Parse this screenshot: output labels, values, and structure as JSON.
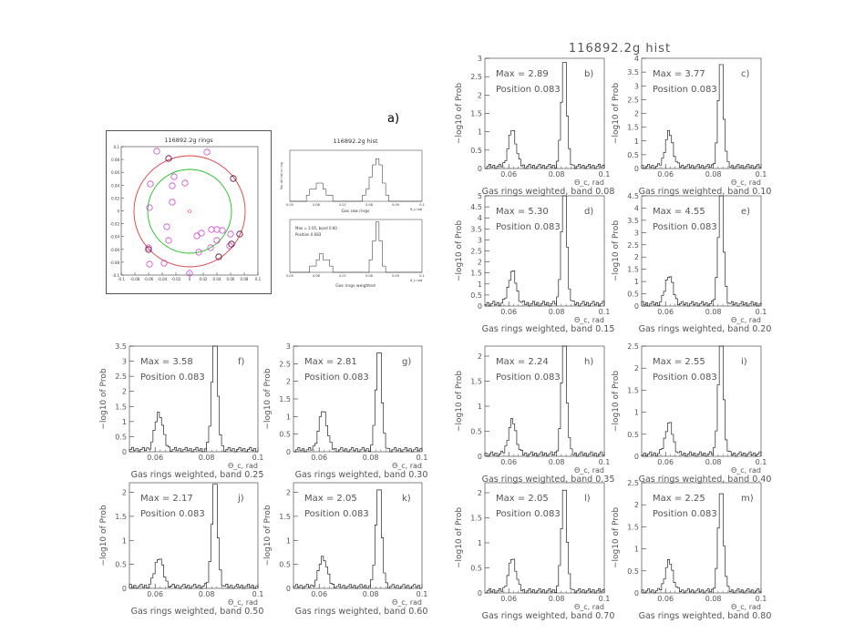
{
  "figure": {
    "title": "116892.2g hist",
    "label_a": "a)"
  },
  "colors": {
    "axis": "#333333",
    "hist": "#222222",
    "ring_outer": "#e04040",
    "ring_inner": "#20c020",
    "hit_magenta": "#cc44cc",
    "hit_dark": "#550033"
  },
  "inset_rings": {
    "title": "116892.2g rings",
    "yticks": [
      "0.1",
      "0.08",
      "0.06",
      "0.04",
      "0.02",
      "0",
      "-0.02",
      "-0.04",
      "-0.06",
      "-0.08",
      "-0.1"
    ],
    "xticks": [
      "-0.1",
      "-0.08",
      "-0.06",
      "-0.04",
      "-0.02",
      "0",
      "0.02",
      "0.04",
      "0.06",
      "0.08",
      "0.1"
    ]
  },
  "inset_hist": {
    "title": "116892.2g hist",
    "top_ylabel": "No. of hits in ring",
    "top_xlabel": "Gas raw rings",
    "bottom_text": [
      "Max = 2.05, band 0.60",
      "Position 0.083"
    ],
    "bottom_xlabel": "Gas rings weighted",
    "xunit": "θ_c rad",
    "xticks": [
      "0.05",
      "0.06",
      "0.07",
      "0.08",
      "0.09",
      "0.1"
    ]
  },
  "panel_common": {
    "ylabel": "−log10 of Prob",
    "xunit": "Θ_c, rad",
    "xticks": [
      "0.06",
      "0.08",
      "0.1"
    ]
  },
  "chart_data": [
    {
      "type": "bar",
      "panel": "b)",
      "max_label": "Max = 2.89",
      "position_label": "Position 0.083",
      "xlabel": "Gas rings weighted, band 0.08",
      "ylabel": "−log10 of Prob",
      "ylim": [
        0,
        3
      ],
      "yticks": [
        "0",
        "0.5",
        "1",
        "1.5",
        "2",
        "2.5",
        "3"
      ]
    },
    {
      "type": "bar",
      "panel": "c)",
      "max_label": "Max = 3.77",
      "position_label": "Position 0.083",
      "xlabel": "Gas rings weighted, band 0.10",
      "ylabel": "−log10 of Prob",
      "ylim": [
        0,
        4
      ],
      "yticks": [
        "0",
        "0.5",
        "1",
        "1.5",
        "2",
        "2.5",
        "3",
        "3.5",
        "4"
      ]
    },
    {
      "type": "bar",
      "panel": "d)",
      "max_label": "Max = 5.30",
      "position_label": "Position 0.083",
      "xlabel": "Gas rings weighted, band 0.15",
      "ylabel": "−log10 of Prob",
      "ylim": [
        0,
        5
      ],
      "yticks": [
        "0",
        "0.5",
        "1",
        "1.5",
        "2",
        "2.5",
        "3",
        "3.5",
        "4",
        "4.5",
        "5"
      ]
    },
    {
      "type": "bar",
      "panel": "e)",
      "max_label": "Max = 4.55",
      "position_label": "Position 0.083",
      "xlabel": "Gas rings weighted, band 0.20",
      "ylabel": "−log10 of Prob",
      "ylim": [
        0,
        4.5
      ],
      "yticks": [
        "0",
        "0.5",
        "1",
        "1.5",
        "2",
        "2.5",
        "3",
        "3.5",
        "4",
        "4.5"
      ]
    },
    {
      "type": "bar",
      "panel": "f)",
      "max_label": "Max = 3.58",
      "position_label": "Position 0.083",
      "xlabel": "Gas rings weighted, band 0.25",
      "ylabel": "−log10 of Prob",
      "ylim": [
        0,
        3.5
      ],
      "yticks": [
        "0",
        "0.5",
        "1",
        "1.5",
        "2",
        "2.5",
        "3",
        "3.5"
      ]
    },
    {
      "type": "bar",
      "panel": "g)",
      "max_label": "Max = 2.81",
      "position_label": "Position 0.083",
      "xlabel": "Gas rings weighted, band 0.30",
      "ylabel": "−log10 of Prob",
      "ylim": [
        0,
        3
      ],
      "yticks": [
        "0",
        "0.5",
        "1",
        "1.5",
        "2",
        "2.5",
        "3"
      ]
    },
    {
      "type": "bar",
      "panel": "h)",
      "max_label": "Max = 2.24",
      "position_label": "Position 0.083",
      "xlabel": "Gas rings weighted, band 0.35",
      "ylabel": "−log10 of Prob",
      "ylim": [
        0,
        2.2
      ],
      "yticks": [
        "0",
        "0.5",
        "1",
        "1.5",
        "2"
      ]
    },
    {
      "type": "bar",
      "panel": "i)",
      "max_label": "Max = 2.55",
      "position_label": "Position 0.083",
      "xlabel": "Gas rings weighted, band 0.40",
      "ylabel": "−log10 of Prob",
      "ylim": [
        0,
        2.5
      ],
      "yticks": [
        "0",
        "0.5",
        "1",
        "1.5",
        "2",
        "2.5"
      ]
    },
    {
      "type": "bar",
      "panel": "j)",
      "max_label": "Max = 2.17",
      "position_label": "Position 0.083",
      "xlabel": "Gas rings weighted, band 0.50",
      "ylabel": "−log10 of Prob",
      "ylim": [
        0,
        2.2
      ],
      "yticks": [
        "0",
        "0.5",
        "1",
        "1.5",
        "2"
      ]
    },
    {
      "type": "bar",
      "panel": "k)",
      "max_label": "Max = 2.05",
      "position_label": "Position 0.083",
      "xlabel": "Gas rings weighted, band 0.60",
      "ylabel": "−log10 of Prob",
      "ylim": [
        0,
        2.2
      ],
      "yticks": [
        "0",
        "0.5",
        "1",
        "1.5",
        "2"
      ]
    },
    {
      "type": "bar",
      "panel": "l)",
      "max_label": "Max = 2.05",
      "position_label": "Position 0.083",
      "xlabel": "Gas rings weighted, band 0.70",
      "ylabel": "−log10 of Prob",
      "ylim": [
        0,
        2.2
      ],
      "yticks": [
        "0",
        "0.5",
        "1",
        "1.5",
        "2"
      ]
    },
    {
      "type": "bar",
      "panel": "m)",
      "max_label": "Max = 2.25",
      "position_label": "Position 0.083",
      "xlabel": "Gas rings weighted, band 0.80",
      "ylabel": "−log10 of Prob",
      "ylim": [
        0,
        2.5
      ],
      "yticks": [
        "0",
        "0.5",
        "1",
        "1.5",
        "2",
        "2.5"
      ]
    }
  ]
}
